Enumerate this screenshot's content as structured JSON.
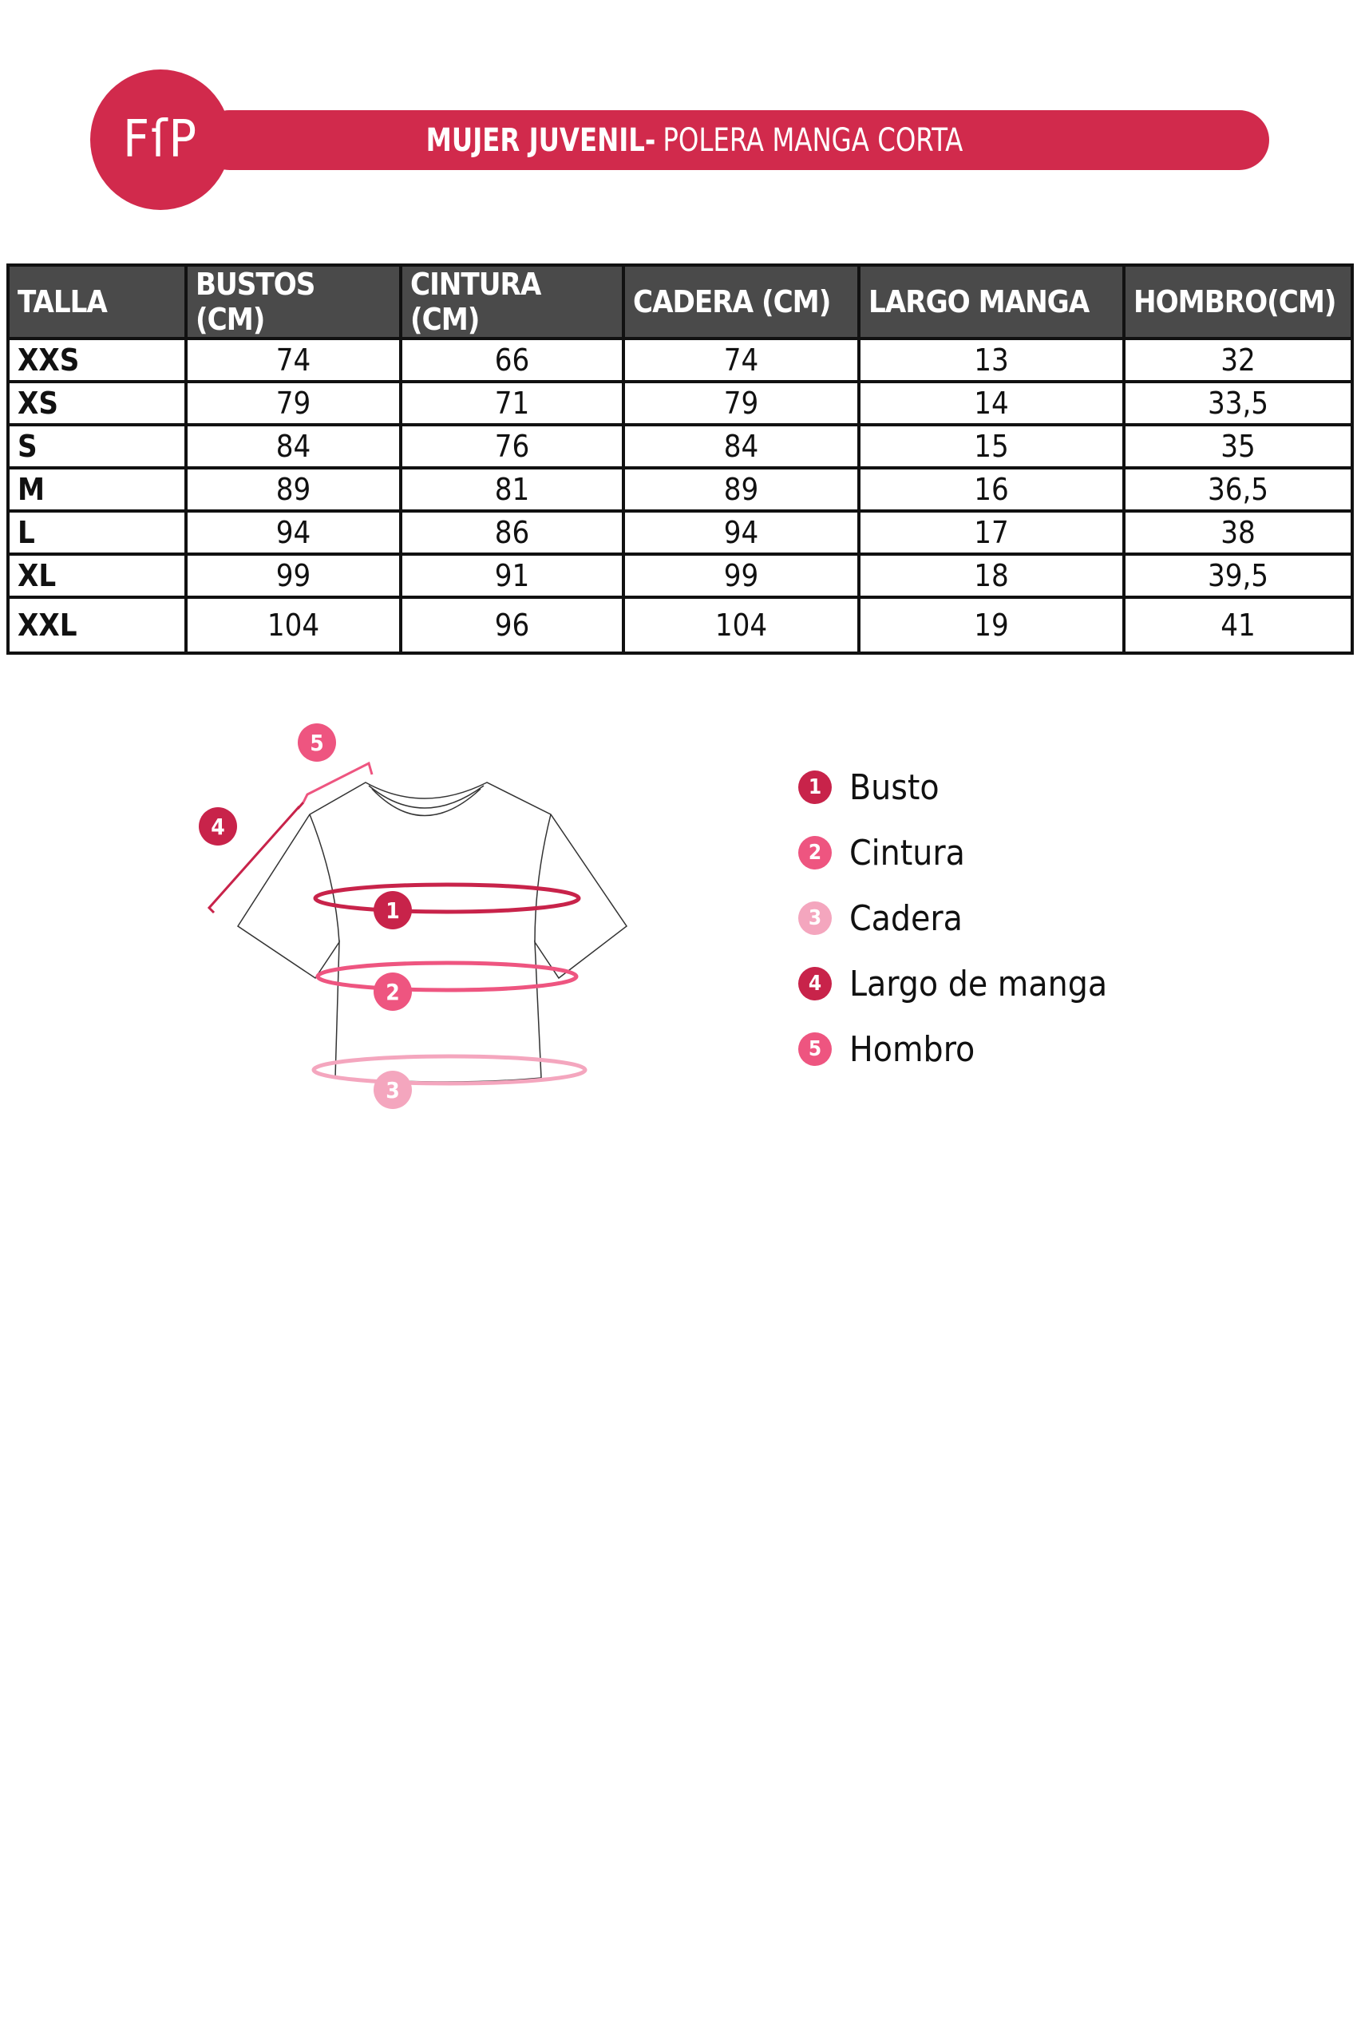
{
  "header": {
    "logo": "FſP",
    "title_bold": "MUJER JUVENIL-",
    "title_rest": "POLERA MANGA CORTA",
    "accent": "#d12a4c"
  },
  "table": {
    "headers": [
      "TALLA",
      "BUSTOS (CM)",
      "CINTURA (CM)",
      "CADERA (CM)",
      "LARGO MANGA",
      "HOMBRO(CM)"
    ],
    "rows": [
      [
        "XXS",
        "74",
        "66",
        "74",
        "13",
        "32"
      ],
      [
        "XS",
        "79",
        "71",
        "79",
        "14",
        "33,5"
      ],
      [
        "S",
        "84",
        "76",
        "84",
        "15",
        "35"
      ],
      [
        "M",
        "89",
        "81",
        "89",
        "16",
        "36,5"
      ],
      [
        "L",
        "94",
        "86",
        "94",
        "17",
        "38"
      ],
      [
        "XL",
        "99",
        "91",
        "99",
        "18",
        "39,5"
      ],
      [
        "XXL",
        "104",
        "96",
        "104",
        "19",
        "41"
      ]
    ]
  },
  "legend": [
    {
      "num": "1",
      "label": "Busto",
      "color": "#c8234a"
    },
    {
      "num": "2",
      "label": "Cintura",
      "color": "#ee5580"
    },
    {
      "num": "3",
      "label": "Cadera",
      "color": "#f4a6be"
    },
    {
      "num": "4",
      "label": "Largo de manga",
      "color": "#c8234a"
    },
    {
      "num": "5",
      "label": "Hombro",
      "color": "#ee5580"
    }
  ]
}
